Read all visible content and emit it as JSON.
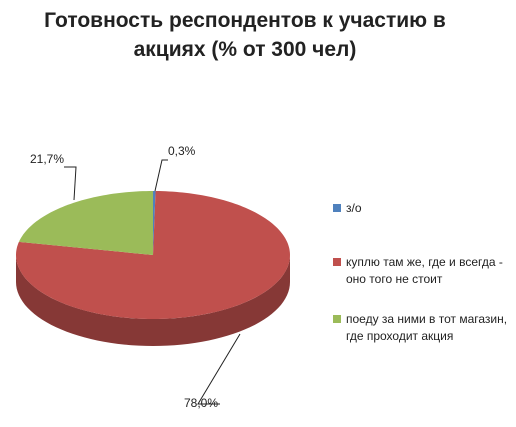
{
  "chart_data": {
    "type": "pie",
    "title": "Готовность респондентов к участию в акциях (% от 300 чел)",
    "categories": [
      "з/о",
      "куплю там же, где и всегда - оно того не стоит",
      "поеду за ними в тот магазин, где проходит акция"
    ],
    "values": [
      0.3,
      78.0,
      21.7
    ],
    "value_labels": [
      "0,3%",
      "78,0%",
      "21,7%"
    ],
    "colors": [
      "#4f81bd",
      "#c0504d",
      "#9bbb59"
    ],
    "legend": "right"
  }
}
